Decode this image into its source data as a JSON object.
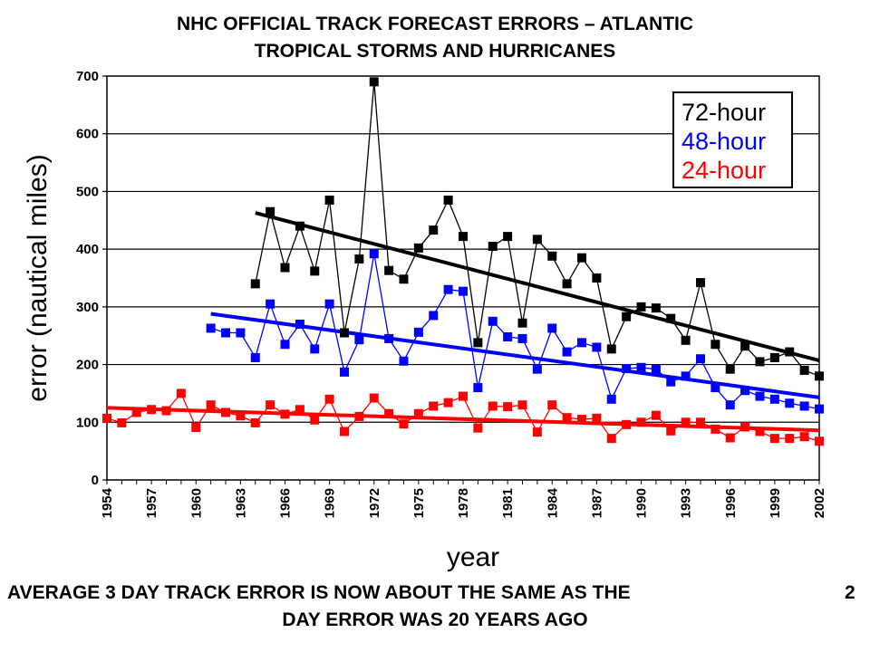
{
  "chart_data": {
    "type": "line",
    "title_line1": "NHC OFFICIAL TRACK FORECAST ERRORS – ATLANTIC",
    "title_line2": "TROPICAL STORMS AND HURRICANES",
    "xlabel": "year",
    "ylabel": "error (nautical miles)",
    "ylim": [
      0,
      700
    ],
    "xlim": [
      1954,
      2002
    ],
    "yticks": [
      0,
      100,
      200,
      300,
      400,
      500,
      600,
      700
    ],
    "xticks": [
      1954,
      1957,
      1960,
      1963,
      1966,
      1969,
      1972,
      1975,
      1978,
      1981,
      1984,
      1987,
      1990,
      1993,
      1996,
      1999,
      2002
    ],
    "grid": "horizontal",
    "legend": "top-right",
    "series": [
      {
        "name": "72-hour",
        "color": "#000000",
        "x": [
          1964,
          1965,
          1966,
          1967,
          1968,
          1969,
          1970,
          1971,
          1972,
          1973,
          1974,
          1975,
          1976,
          1977,
          1978,
          1979,
          1980,
          1981,
          1982,
          1983,
          1984,
          1985,
          1986,
          1987,
          1988,
          1989,
          1990,
          1991,
          1992,
          1993,
          1994,
          1995,
          1996,
          1997,
          1998,
          1999,
          2000,
          2001,
          2002
        ],
        "values": [
          340,
          465,
          368,
          440,
          362,
          485,
          255,
          383,
          690,
          363,
          348,
          402,
          433,
          485,
          422,
          238,
          405,
          422,
          272,
          417,
          388,
          340,
          385,
          350,
          227,
          283,
          300,
          298,
          280,
          242,
          342,
          235,
          192,
          232,
          205,
          212,
          222,
          190,
          180
        ],
        "trend": [
          463,
          207
        ]
      },
      {
        "name": "48-hour",
        "color": "#0000ff",
        "x": [
          1961,
          1962,
          1963,
          1964,
          1965,
          1966,
          1967,
          1968,
          1969,
          1970,
          1971,
          1972,
          1973,
          1974,
          1975,
          1976,
          1977,
          1978,
          1979,
          1980,
          1981,
          1982,
          1983,
          1984,
          1985,
          1986,
          1987,
          1988,
          1989,
          1990,
          1991,
          1992,
          1993,
          1994,
          1995,
          1996,
          1997,
          1998,
          1999,
          2000,
          2001,
          2002
        ],
        "values": [
          263,
          255,
          255,
          212,
          305,
          235,
          270,
          227,
          305,
          187,
          243,
          392,
          245,
          206,
          256,
          285,
          330,
          327,
          160,
          275,
          248,
          245,
          192,
          263,
          222,
          238,
          230,
          140,
          193,
          195,
          192,
          170,
          180,
          210,
          160,
          130,
          155,
          145,
          140,
          133,
          128,
          123
        ],
        "trend": [
          288,
          143
        ]
      },
      {
        "name": "24-hour",
        "color": "#ff0000",
        "x": [
          1954,
          1955,
          1956,
          1957,
          1958,
          1959,
          1960,
          1961,
          1962,
          1963,
          1964,
          1965,
          1966,
          1967,
          1968,
          1969,
          1970,
          1971,
          1972,
          1973,
          1974,
          1975,
          1976,
          1977,
          1978,
          1979,
          1980,
          1981,
          1982,
          1983,
          1984,
          1985,
          1986,
          1987,
          1988,
          1989,
          1990,
          1991,
          1992,
          1993,
          1994,
          1995,
          1996,
          1997,
          1998,
          1999,
          2000,
          2001,
          2002
        ],
        "values": [
          107,
          99,
          117,
          122,
          120,
          150,
          91,
          130,
          117,
          111,
          99,
          130,
          114,
          122,
          104,
          140,
          84,
          110,
          142,
          115,
          97,
          115,
          128,
          134,
          145,
          90,
          128,
          127,
          130,
          83,
          130,
          108,
          105,
          107,
          72,
          96,
          100,
          112,
          85,
          100,
          100,
          88,
          73,
          92,
          84,
          72,
          72,
          75,
          67
        ],
        "trend": [
          125,
          86
        ]
      }
    ]
  },
  "caption": {
    "line1": "AVERAGE 3 DAY TRACK ERROR IS NOW ABOUT THE SAME AS THE",
    "number": "2",
    "line2": "DAY ERROR WAS 20 YEARS AGO"
  }
}
